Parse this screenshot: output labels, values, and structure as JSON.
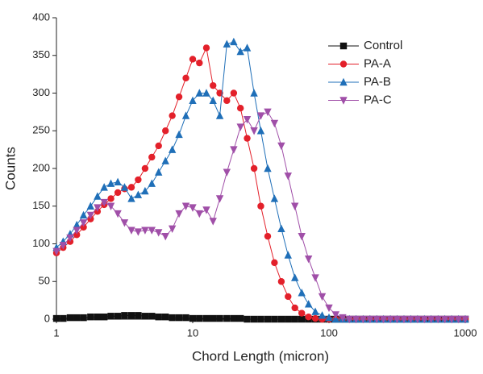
{
  "chart_data": {
    "type": "line",
    "x_label": "Chord Length (micron)",
    "y_label": "Counts",
    "xscale": "log",
    "xlim": [
      1,
      1000
    ],
    "xticks": [
      1,
      10,
      100,
      1000
    ],
    "ylim": [
      0,
      400
    ],
    "yticks": [
      0,
      50,
      100,
      150,
      200,
      250,
      300,
      350,
      400
    ],
    "legend": "top-right",
    "x": [
      1,
      1.12,
      1.26,
      1.41,
      1.58,
      1.78,
      2,
      2.24,
      2.51,
      2.82,
      3.16,
      3.55,
      3.98,
      4.47,
      5.01,
      5.62,
      6.31,
      7.08,
      7.94,
      8.91,
      10,
      11.2,
      12.6,
      14.1,
      15.8,
      17.8,
      20,
      22.4,
      25.1,
      28.2,
      31.6,
      35.5,
      39.8,
      44.7,
      50.1,
      56.2,
      63.1,
      70.8,
      79.4,
      89.1,
      100,
      112,
      126,
      141,
      158,
      178,
      200,
      224,
      251,
      282,
      316,
      355,
      398,
      447,
      501,
      562,
      631,
      708,
      794,
      891,
      1000
    ],
    "series": [
      {
        "name": "Control",
        "color": "#111111",
        "marker": "square",
        "values": [
          1,
          1,
          2,
          2,
          2,
          3,
          3,
          3,
          4,
          4,
          5,
          5,
          5,
          4,
          4,
          3,
          3,
          2,
          2,
          2,
          1,
          1,
          1,
          1,
          1,
          1,
          1,
          1,
          0,
          0,
          0,
          0,
          0,
          0,
          0,
          0,
          0,
          0,
          0,
          0,
          0,
          0,
          0,
          0,
          0,
          0,
          0,
          0,
          0,
          0,
          0,
          0,
          0,
          0,
          0,
          0,
          0,
          0,
          0,
          0,
          0
        ]
      },
      {
        "name": "PA-A",
        "color": "#e3202a",
        "marker": "circle",
        "values": [
          88,
          95,
          103,
          112,
          122,
          133,
          143,
          152,
          160,
          168,
          173,
          175,
          185,
          200,
          215,
          230,
          250,
          270,
          295,
          320,
          345,
          340,
          360,
          310,
          300,
          290,
          300,
          280,
          240,
          200,
          150,
          110,
          75,
          50,
          30,
          15,
          8,
          3,
          1,
          0,
          0,
          0,
          0,
          0,
          0,
          0,
          0,
          0,
          0,
          0,
          0,
          0,
          0,
          0,
          0,
          0,
          0,
          0,
          0,
          0,
          0
        ]
      },
      {
        "name": "PA-B",
        "color": "#1f6fb8",
        "marker": "triangle-up",
        "values": [
          95,
          103,
          113,
          125,
          138,
          150,
          163,
          175,
          180,
          182,
          175,
          160,
          165,
          170,
          180,
          195,
          210,
          225,
          245,
          270,
          290,
          300,
          300,
          290,
          270,
          365,
          368,
          355,
          360,
          300,
          250,
          200,
          160,
          120,
          85,
          55,
          35,
          20,
          10,
          5,
          2,
          0,
          0,
          0,
          0,
          0,
          0,
          0,
          0,
          0,
          0,
          0,
          0,
          0,
          0,
          0,
          0,
          0,
          0,
          0,
          0
        ]
      },
      {
        "name": "PA-C",
        "color": "#a04fa8",
        "marker": "triangle-down",
        "values": [
          90,
          98,
          108,
          118,
          128,
          138,
          148,
          155,
          150,
          140,
          128,
          118,
          116,
          118,
          118,
          115,
          110,
          120,
          140,
          150,
          148,
          140,
          145,
          130,
          160,
          195,
          225,
          255,
          265,
          250,
          270,
          275,
          260,
          230,
          190,
          150,
          110,
          80,
          55,
          30,
          15,
          6,
          2,
          0,
          0,
          0,
          0,
          0,
          0,
          0,
          0,
          0,
          0,
          0,
          0,
          0,
          0,
          0,
          0,
          0,
          0
        ]
      }
    ]
  }
}
